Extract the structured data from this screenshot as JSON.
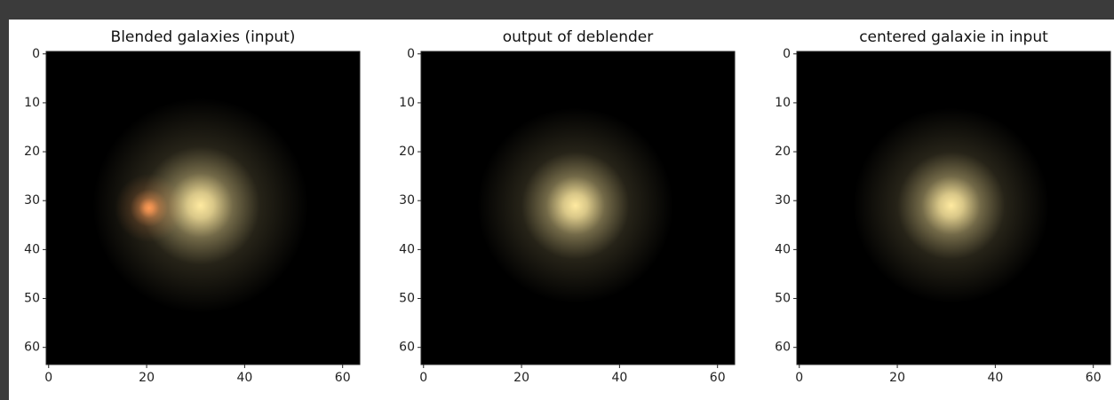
{
  "chart_data": [
    {
      "type": "image",
      "title": "Blended galaxies (input)",
      "xlim": [
        -0.5,
        63.5
      ],
      "ylim": [
        63.5,
        -0.5
      ],
      "xticks": [
        0,
        20,
        40,
        60
      ],
      "yticks": [
        0,
        10,
        20,
        30,
        40,
        50,
        60
      ],
      "sources": [
        {
          "x": 31,
          "y": 31,
          "radius": 22,
          "color": "#ffeaa0"
        },
        {
          "x": 20.5,
          "y": 31.5,
          "radius": 7,
          "color": "#ff9a55"
        }
      ]
    },
    {
      "type": "image",
      "title": "output of deblender",
      "xlim": [
        -0.5,
        63.5
      ],
      "ylim": [
        63.5,
        -0.5
      ],
      "xticks": [
        0,
        20,
        40,
        60
      ],
      "yticks": [
        0,
        10,
        20,
        30,
        40,
        50,
        60
      ],
      "sources": [
        {
          "x": 31,
          "y": 31,
          "radius": 20,
          "color": "#ffeaa0"
        }
      ]
    },
    {
      "type": "image",
      "title": "centered galaxie in input",
      "xlim": [
        -0.5,
        63.5
      ],
      "ylim": [
        63.5,
        -0.5
      ],
      "xticks": [
        0,
        20,
        40,
        60
      ],
      "yticks": [
        0,
        10,
        20,
        30,
        40,
        50,
        60
      ],
      "sources": [
        {
          "x": 31,
          "y": 31,
          "radius": 20,
          "color": "#ffeaa0"
        }
      ]
    }
  ]
}
